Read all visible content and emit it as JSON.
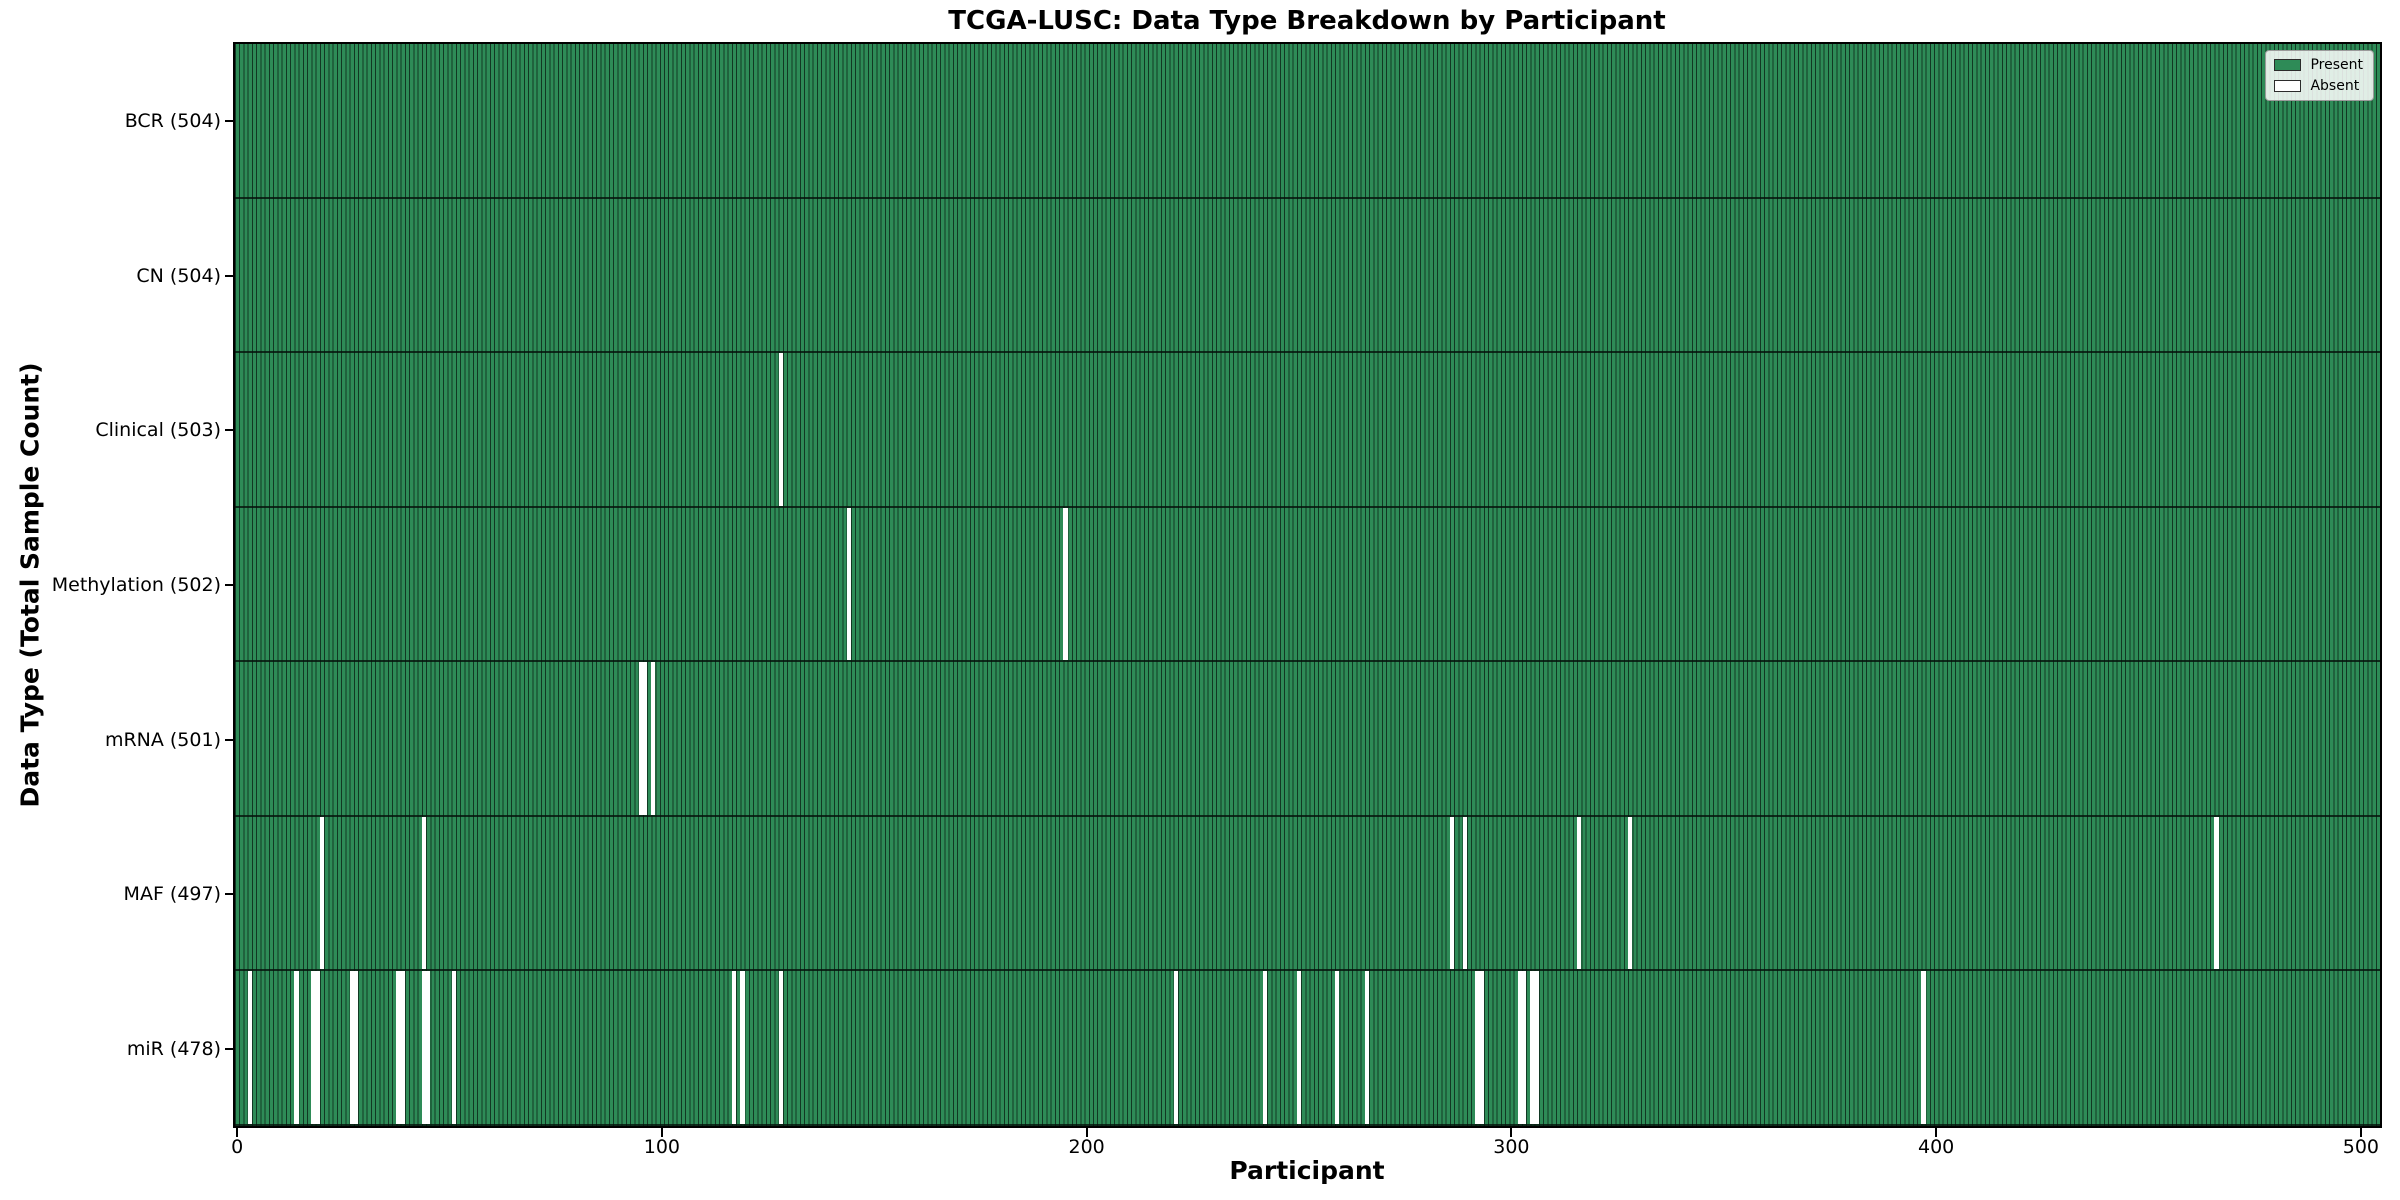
{
  "figure": {
    "title": "TCGA-LUSC: Data Type Breakdown by Participant",
    "xlabel": "Participant",
    "ylabel": "Data Type (Total Sample Count)"
  },
  "legend": {
    "present": "Present",
    "absent": "Absent"
  },
  "colors": {
    "present": "#2e8b57",
    "absent": "#ffffff",
    "bar_edge": "rgba(6,24,15,0.72)",
    "row_divider": "rgba(5,18,11,0.8)",
    "axis": "#000000"
  },
  "chart_data": {
    "type": "heatmap",
    "title": "TCGA-LUSC: Data Type Breakdown by Participant",
    "xlabel": "Participant",
    "ylabel": "Data Type (Total Sample Count)",
    "legend": [
      "Present",
      "Absent"
    ],
    "legend_position": "upper right",
    "grid": false,
    "n_participants": 504,
    "x_range": [
      0,
      504
    ],
    "x_ticks": [
      0,
      100,
      200,
      300,
      400,
      500
    ],
    "rows": [
      {
        "label": "BCR (504)",
        "data_type": "BCR",
        "present_count": 504,
        "absent_participants": []
      },
      {
        "label": "CN (504)",
        "data_type": "CN",
        "present_count": 504,
        "absent_participants": []
      },
      {
        "label": "Clinical (503)",
        "data_type": "Clinical",
        "present_count": 503,
        "absent_participants": [
          128
        ]
      },
      {
        "label": "Methylation (502)",
        "data_type": "Methylation",
        "present_count": 502,
        "absent_participants": [
          144,
          195
        ]
      },
      {
        "label": "mRNA (501)",
        "data_type": "mRNA",
        "present_count": 501,
        "absent_participants": [
          95,
          96,
          98
        ]
      },
      {
        "label": "MAF (497)",
        "data_type": "MAF",
        "present_count": 497,
        "absent_participants": [
          20,
          44,
          286,
          289,
          316,
          328,
          466
        ]
      },
      {
        "label": "miR (478)",
        "data_type": "miR",
        "present_count": 478,
        "absent_participants": [
          3,
          14,
          18,
          19,
          27,
          28,
          38,
          39,
          44,
          45,
          51,
          117,
          119,
          128,
          221,
          242,
          250,
          259,
          266,
          292,
          293,
          302,
          303,
          305,
          306,
          397
        ]
      }
    ]
  }
}
